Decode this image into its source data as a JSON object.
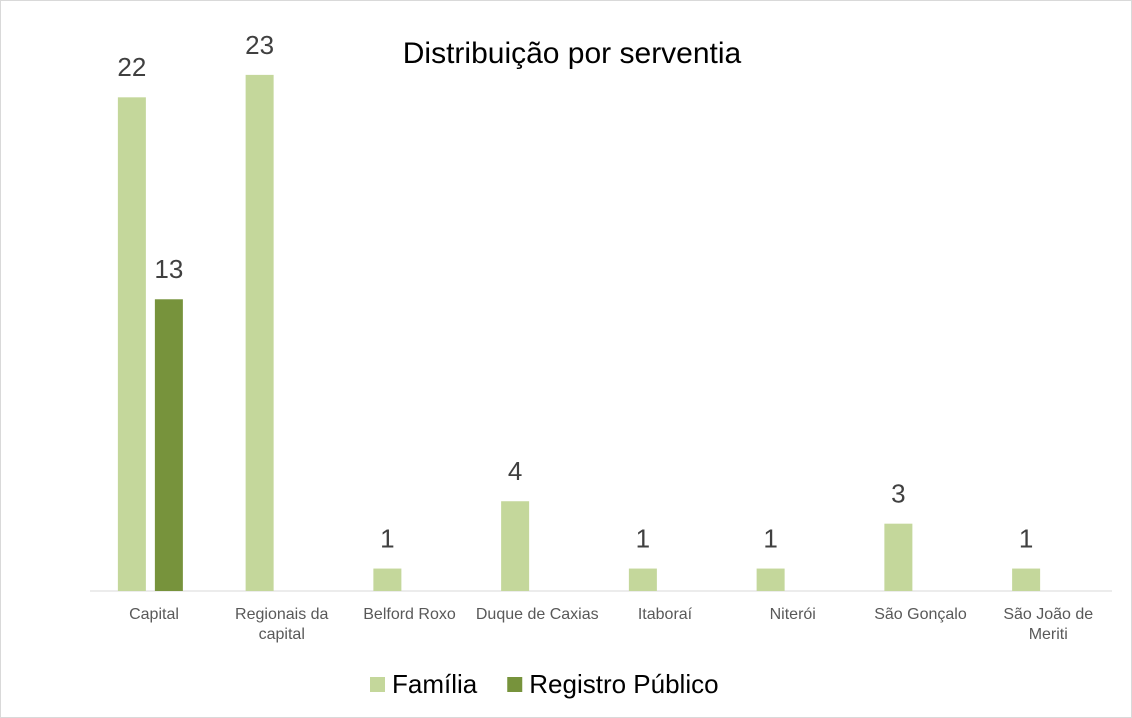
{
  "chart_data": {
    "type": "bar",
    "title": "Distribuição por serventia",
    "categories": [
      "Capital",
      "Regionais da capital",
      "Belford Roxo",
      "Duque de Caxias",
      "Itaboraí",
      "Niterói",
      "São Gonçalo",
      "São João de Meriti"
    ],
    "series": [
      {
        "name": "Família",
        "color": "#c4d79b",
        "values": [
          22,
          23,
          1,
          4,
          1,
          1,
          3,
          1
        ]
      },
      {
        "name": "Registro Público",
        "color": "#77933c",
        "values": [
          13,
          null,
          null,
          null,
          null,
          null,
          null,
          null
        ]
      }
    ],
    "ylim": [
      0,
      25
    ],
    "legend": "bottom"
  }
}
